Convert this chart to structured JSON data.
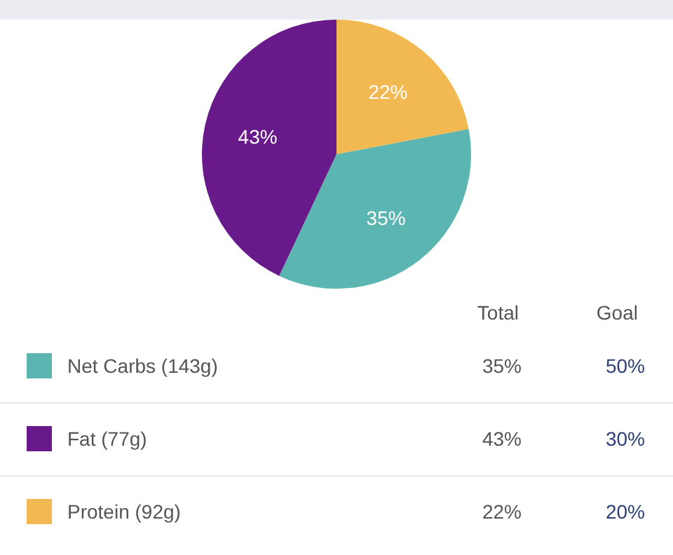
{
  "chart_data": {
    "type": "pie",
    "categories": [
      "Net Carbs (143g)",
      "Fat (77g)",
      "Protein (92g)"
    ],
    "values": [
      35,
      43,
      22
    ],
    "colors": [
      "#5bb5b0",
      "#68198a",
      "#f2b851"
    ],
    "value_labels": [
      "35%",
      "43%",
      "22%"
    ],
    "legend": "bottom",
    "annotations": [
      "Total",
      "Goal",
      "50%",
      "30%",
      "20%"
    ]
  }
}
